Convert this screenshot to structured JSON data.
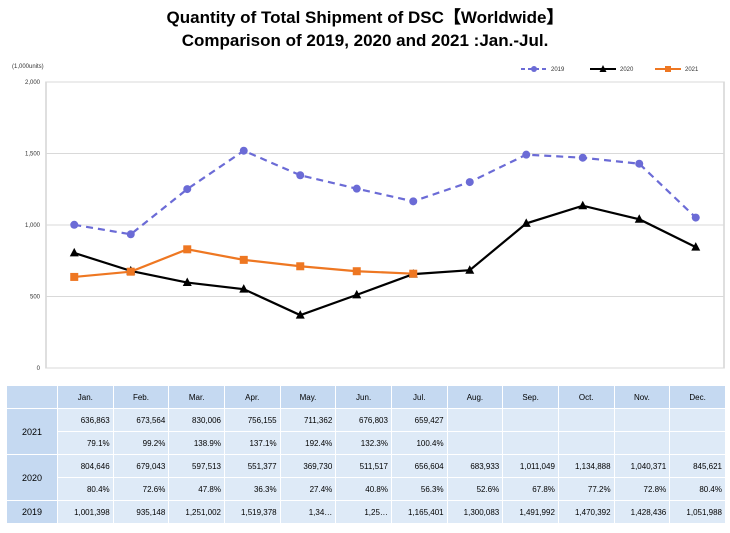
{
  "title_line1": "Quantity of Total Shipment of DSC【Worldwide】",
  "title_line2": "Comparison of 2019, 2020 and 2021 :Jan.-Jul.",
  "unit_label": "(1,000units)",
  "chart_data": {
    "type": "line",
    "categories": [
      "Jan.",
      "Feb.",
      "Mar.",
      "Apr.",
      "May.",
      "Jun.",
      "Jul.",
      "Aug.",
      "Sep.",
      "Oct.",
      "Nov.",
      "Dec."
    ],
    "ylim": [
      0,
      2000
    ],
    "yticks": [
      "0",
      "500",
      "1,000",
      "1,500",
      "2,000"
    ],
    "ytick_values": [
      0,
      500,
      1000,
      1500,
      2000
    ],
    "grid": true,
    "legend_position": "top-right",
    "series": [
      {
        "name": "2019",
        "color": "#6b6bd6",
        "style": "dashed",
        "marker": "circle",
        "values": [
          1001.398,
          935.148,
          1251.002,
          1519.378,
          1348,
          1254,
          1165.401,
          1300.083,
          1491.992,
          1470.392,
          1428.436,
          1051.988
        ]
      },
      {
        "name": "2020",
        "color": "#000000",
        "style": "solid",
        "marker": "triangle",
        "values": [
          804.646,
          679.043,
          597.513,
          551.377,
          369.73,
          511.517,
          656.604,
          683.933,
          1011.049,
          1134.888,
          1040.371,
          845.621
        ]
      },
      {
        "name": "2021",
        "color": "#ee7722",
        "style": "solid",
        "marker": "square",
        "values": [
          636.863,
          673.564,
          830.006,
          756.155,
          711.362,
          676.803,
          659.427,
          null,
          null,
          null,
          null,
          null
        ]
      }
    ]
  },
  "table": {
    "headers": [
      "Jan.",
      "Feb.",
      "Mar.",
      "Apr.",
      "May.",
      "Jun.",
      "Jul.",
      "Aug.",
      "Sep.",
      "Oct.",
      "Nov.",
      "Dec."
    ],
    "rows": [
      {
        "year": "2021",
        "values": [
          "636,863",
          "673,564",
          "830,006",
          "756,155",
          "711,362",
          "676,803",
          "659,427",
          "",
          "",
          "",
          "",
          ""
        ],
        "pct": [
          "79.1%",
          "99.2%",
          "138.9%",
          "137.1%",
          "192.4%",
          "132.3%",
          "100.4%",
          "",
          "",
          "",
          "",
          ""
        ]
      },
      {
        "year": "2020",
        "values": [
          "804,646",
          "679,043",
          "597,513",
          "551,377",
          "369,730",
          "511,517",
          "656,604",
          "683,933",
          "1,011,049",
          "1,134,888",
          "1,040,371",
          "845,621"
        ],
        "pct": [
          "80.4%",
          "72.6%",
          "47.8%",
          "36.3%",
          "27.4%",
          "40.8%",
          "56.3%",
          "52.6%",
          "67.8%",
          "77.2%",
          "72.8%",
          "80.4%"
        ]
      },
      {
        "year": "2019",
        "values": [
          "1,001,398",
          "935,148",
          "1,251,002",
          "1,519,378",
          "1,34…",
          "1,25…",
          "1,165,401",
          "1,300,083",
          "1,491,992",
          "1,470,392",
          "1,428,436",
          "1,051,988"
        ]
      }
    ]
  }
}
